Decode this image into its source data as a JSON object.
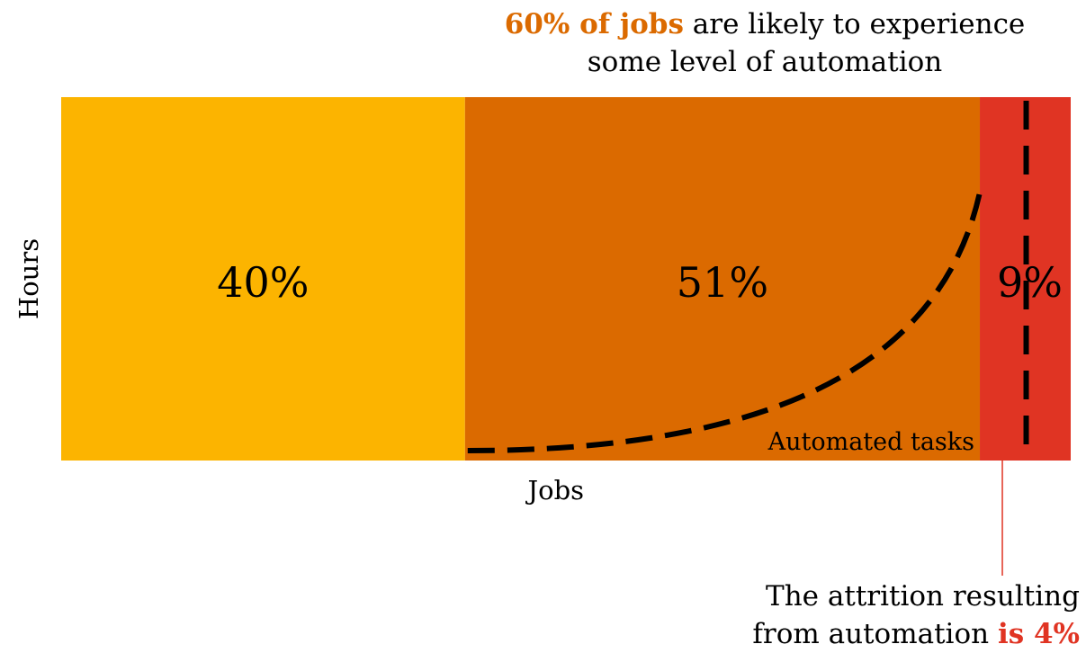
{
  "headline": {
    "highlight": "60% of jobs",
    "line1_rest": " are likely to experience",
    "line2": "some level of automation"
  },
  "footnote": {
    "line1": "The attrition resulting",
    "line2_plain": "from automation ",
    "line2_highlight": "is 4%"
  },
  "colors": {
    "segment_1": "#FCB400",
    "segment_2": "#DB6A00",
    "segment_3": "#E03423",
    "highlight_orange": "#DB6A00",
    "highlight_red": "#E03423"
  },
  "chart_data": {
    "type": "bar",
    "orientation": "horizontal-stacked",
    "xlabel": "Jobs",
    "ylabel": "Hours",
    "segments": [
      {
        "label": "40%",
        "value": 40
      },
      {
        "label": "51%",
        "value": 51
      },
      {
        "label": "9%",
        "value": 9
      }
    ],
    "annotations": [
      {
        "text": "Automated tasks"
      }
    ]
  }
}
